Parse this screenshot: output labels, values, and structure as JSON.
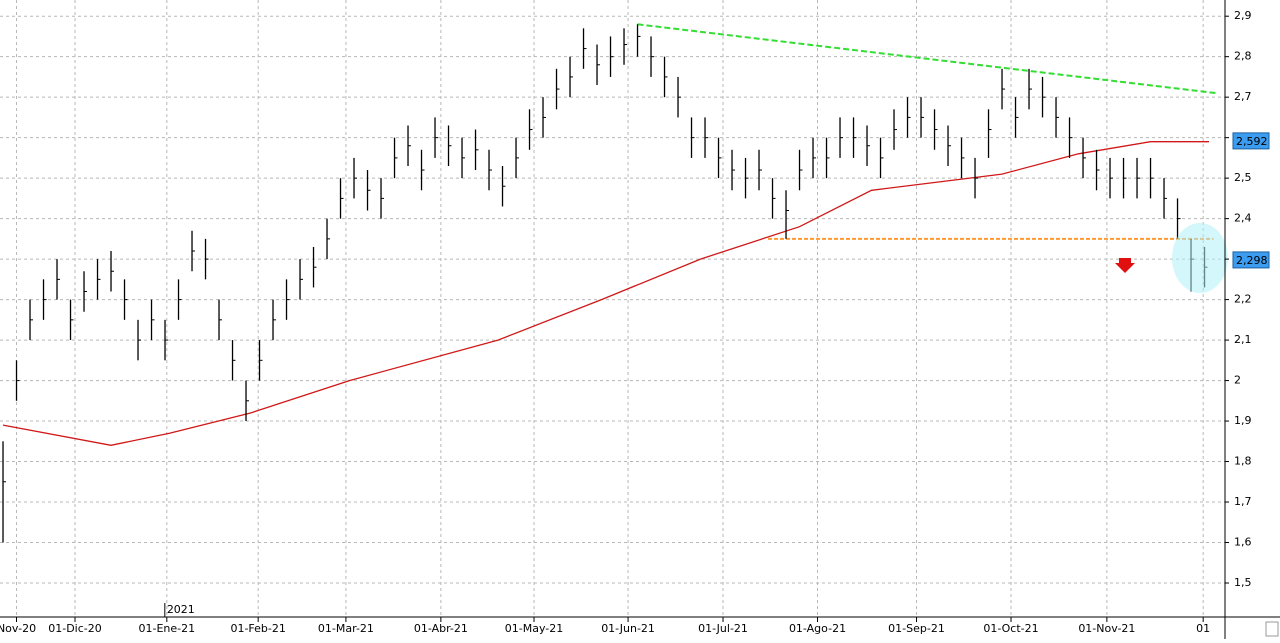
{
  "chart_data": {
    "type": "ohlc",
    "x": [
      0,
      3,
      6,
      9,
      12,
      15,
      18,
      21,
      24,
      27,
      30,
      33,
      36,
      39,
      42,
      45,
      48,
      51,
      54,
      57,
      60,
      63,
      66,
      69,
      72,
      75,
      78,
      81,
      84,
      87,
      90,
      93,
      96,
      99,
      102,
      105,
      108,
      111,
      114,
      117,
      120,
      123,
      126,
      129,
      132,
      135,
      138,
      141,
      144,
      147,
      150,
      153,
      156,
      159,
      162,
      165,
      168,
      171,
      174,
      177,
      180,
      183,
      186,
      189,
      192,
      195,
      198,
      201,
      204,
      207,
      210,
      213,
      216,
      219,
      222,
      225,
      228,
      231,
      234,
      237,
      240,
      243,
      246,
      249,
      252,
      255,
      258,
      261,
      264,
      267
    ],
    "high": [
      1.85,
      2.05,
      2.2,
      2.25,
      2.3,
      2.2,
      2.27,
      2.3,
      2.32,
      2.25,
      2.15,
      2.2,
      2.15,
      2.25,
      2.37,
      2.35,
      2.2,
      2.1,
      2.0,
      2.1,
      2.2,
      2.25,
      2.3,
      2.33,
      2.4,
      2.5,
      2.55,
      2.52,
      2.5,
      2.6,
      2.63,
      2.57,
      2.65,
      2.63,
      2.6,
      2.62,
      2.57,
      2.53,
      2.6,
      2.67,
      2.7,
      2.77,
      2.8,
      2.87,
      2.83,
      2.85,
      2.87,
      2.88,
      2.85,
      2.8,
      2.75,
      2.65,
      2.65,
      2.6,
      2.57,
      2.55,
      2.57,
      2.5,
      2.47,
      2.57,
      2.6,
      2.6,
      2.65,
      2.65,
      2.63,
      2.6,
      2.67,
      2.7,
      2.7,
      2.67,
      2.63,
      2.6,
      2.55,
      2.67,
      2.77,
      2.7,
      2.77,
      2.75,
      2.7,
      2.65,
      2.6,
      2.57,
      2.55,
      2.55,
      2.55,
      2.55,
      2.5,
      2.45,
      2.35,
      2.33
    ],
    "low": [
      1.6,
      1.95,
      2.1,
      2.15,
      2.2,
      2.1,
      2.17,
      2.2,
      2.22,
      2.15,
      2.05,
      2.1,
      2.05,
      2.15,
      2.27,
      2.25,
      2.1,
      2.0,
      1.9,
      2.0,
      2.1,
      2.15,
      2.2,
      2.23,
      2.3,
      2.4,
      2.45,
      2.42,
      2.4,
      2.5,
      2.53,
      2.47,
      2.55,
      2.53,
      2.5,
      2.52,
      2.47,
      2.43,
      2.5,
      2.57,
      2.6,
      2.67,
      2.7,
      2.77,
      2.73,
      2.75,
      2.78,
      2.8,
      2.75,
      2.7,
      2.65,
      2.55,
      2.55,
      2.5,
      2.47,
      2.45,
      2.47,
      2.4,
      2.35,
      2.47,
      2.5,
      2.5,
      2.55,
      2.55,
      2.53,
      2.5,
      2.57,
      2.6,
      2.6,
      2.57,
      2.53,
      2.5,
      2.45,
      2.55,
      2.67,
      2.6,
      2.67,
      2.65,
      2.6,
      2.55,
      2.5,
      2.47,
      2.45,
      2.45,
      2.45,
      2.45,
      2.4,
      2.35,
      2.22,
      2.23
    ],
    "close": [
      1.75,
      2.0,
      2.15,
      2.2,
      2.25,
      2.15,
      2.22,
      2.25,
      2.27,
      2.2,
      2.1,
      2.15,
      2.1,
      2.2,
      2.32,
      2.3,
      2.15,
      2.05,
      1.95,
      2.05,
      2.15,
      2.2,
      2.25,
      2.28,
      2.35,
      2.45,
      2.5,
      2.47,
      2.45,
      2.55,
      2.58,
      2.52,
      2.6,
      2.58,
      2.55,
      2.57,
      2.52,
      2.48,
      2.55,
      2.62,
      2.65,
      2.72,
      2.75,
      2.82,
      2.78,
      2.8,
      2.83,
      2.85,
      2.8,
      2.75,
      2.7,
      2.6,
      2.6,
      2.55,
      2.52,
      2.5,
      2.52,
      2.45,
      2.42,
      2.52,
      2.55,
      2.55,
      2.6,
      2.6,
      2.58,
      2.55,
      2.62,
      2.65,
      2.65,
      2.62,
      2.58,
      2.55,
      2.5,
      2.62,
      2.72,
      2.65,
      2.72,
      2.7,
      2.65,
      2.6,
      2.55,
      2.52,
      2.5,
      2.5,
      2.5,
      2.5,
      2.45,
      2.4,
      2.3,
      2.28
    ],
    "bar_color": "#000000",
    "lines": [
      {
        "color": "#d01818",
        "dash": false,
        "x": [
          0,
          24,
          37,
          55,
          77,
          110,
          133,
          155,
          177,
          193,
          222,
          239,
          255,
          268
        ],
        "values": [
          1.89,
          1.84,
          1.87,
          1.92,
          2.0,
          2.1,
          2.2,
          2.3,
          2.38,
          2.47,
          2.51,
          2.56,
          2.59,
          2.59
        ]
      },
      {
        "color": "#33dd33",
        "dash": true,
        "x": [
          141,
          269.5
        ],
        "values": [
          2.88,
          2.71
        ]
      },
      {
        "color": "#ff9933",
        "dash": true,
        "x": [
          170,
          269
        ],
        "values": [
          2.35,
          2.35
        ]
      }
    ],
    "price_labels": [
      {
        "value": 2.592,
        "label": "2,592"
      },
      {
        "value": 2.298,
        "label": "2,298"
      }
    ],
    "xlim": [
      -0.67,
      271.55
    ],
    "ylim": [
      1.416,
      2.94
    ],
    "xticks": [
      {
        "value": 3,
        "label": "Nov-20"
      },
      {
        "value": 16,
        "label": "01-Dic-20"
      },
      {
        "value": 36.4,
        "label": "01-Ene-21"
      },
      {
        "value": 56.7,
        "label": "01-Feb-21"
      },
      {
        "value": 76.2,
        "label": "01-Mar-21"
      },
      {
        "value": 97.3,
        "label": "01-Abr-21"
      },
      {
        "value": 118,
        "label": "01-May-21"
      },
      {
        "value": 138.9,
        "label": "01-Jun-21"
      },
      {
        "value": 160,
        "label": "01-Jul-21"
      },
      {
        "value": 181,
        "label": "01-Ago-21"
      },
      {
        "value": 203,
        "label": "01-Sep-21"
      },
      {
        "value": 224,
        "label": "01-Oct-21"
      },
      {
        "value": 245.3,
        "label": "01-Nov-21"
      },
      {
        "value": 266.7,
        "label": "01"
      }
    ],
    "year_label": "2021",
    "yticks": [
      {
        "value": 2.9,
        "label": "2,9"
      },
      {
        "value": 2.8,
        "label": "2,8"
      },
      {
        "value": 2.7,
        "label": "2,7"
      },
      {
        "value": 2.6,
        "label": "2,6"
      },
      {
        "value": 2.5,
        "label": "2,5"
      },
      {
        "value": 2.4,
        "label": "2,4"
      },
      {
        "value": 2.3,
        "label": "2,3"
      },
      {
        "value": 2.2,
        "label": "2,2"
      },
      {
        "value": 2.1,
        "label": "2,1"
      },
      2,
      {
        "value": 1.9,
        "label": "1,9"
      },
      {
        "value": 1.8,
        "label": "1,8"
      },
      {
        "value": 1.7,
        "label": "1,7"
      },
      {
        "value": 1.6,
        "label": "1,6"
      },
      {
        "value": 1.5,
        "label": "1,5"
      }
    ],
    "grid": true
  }
}
